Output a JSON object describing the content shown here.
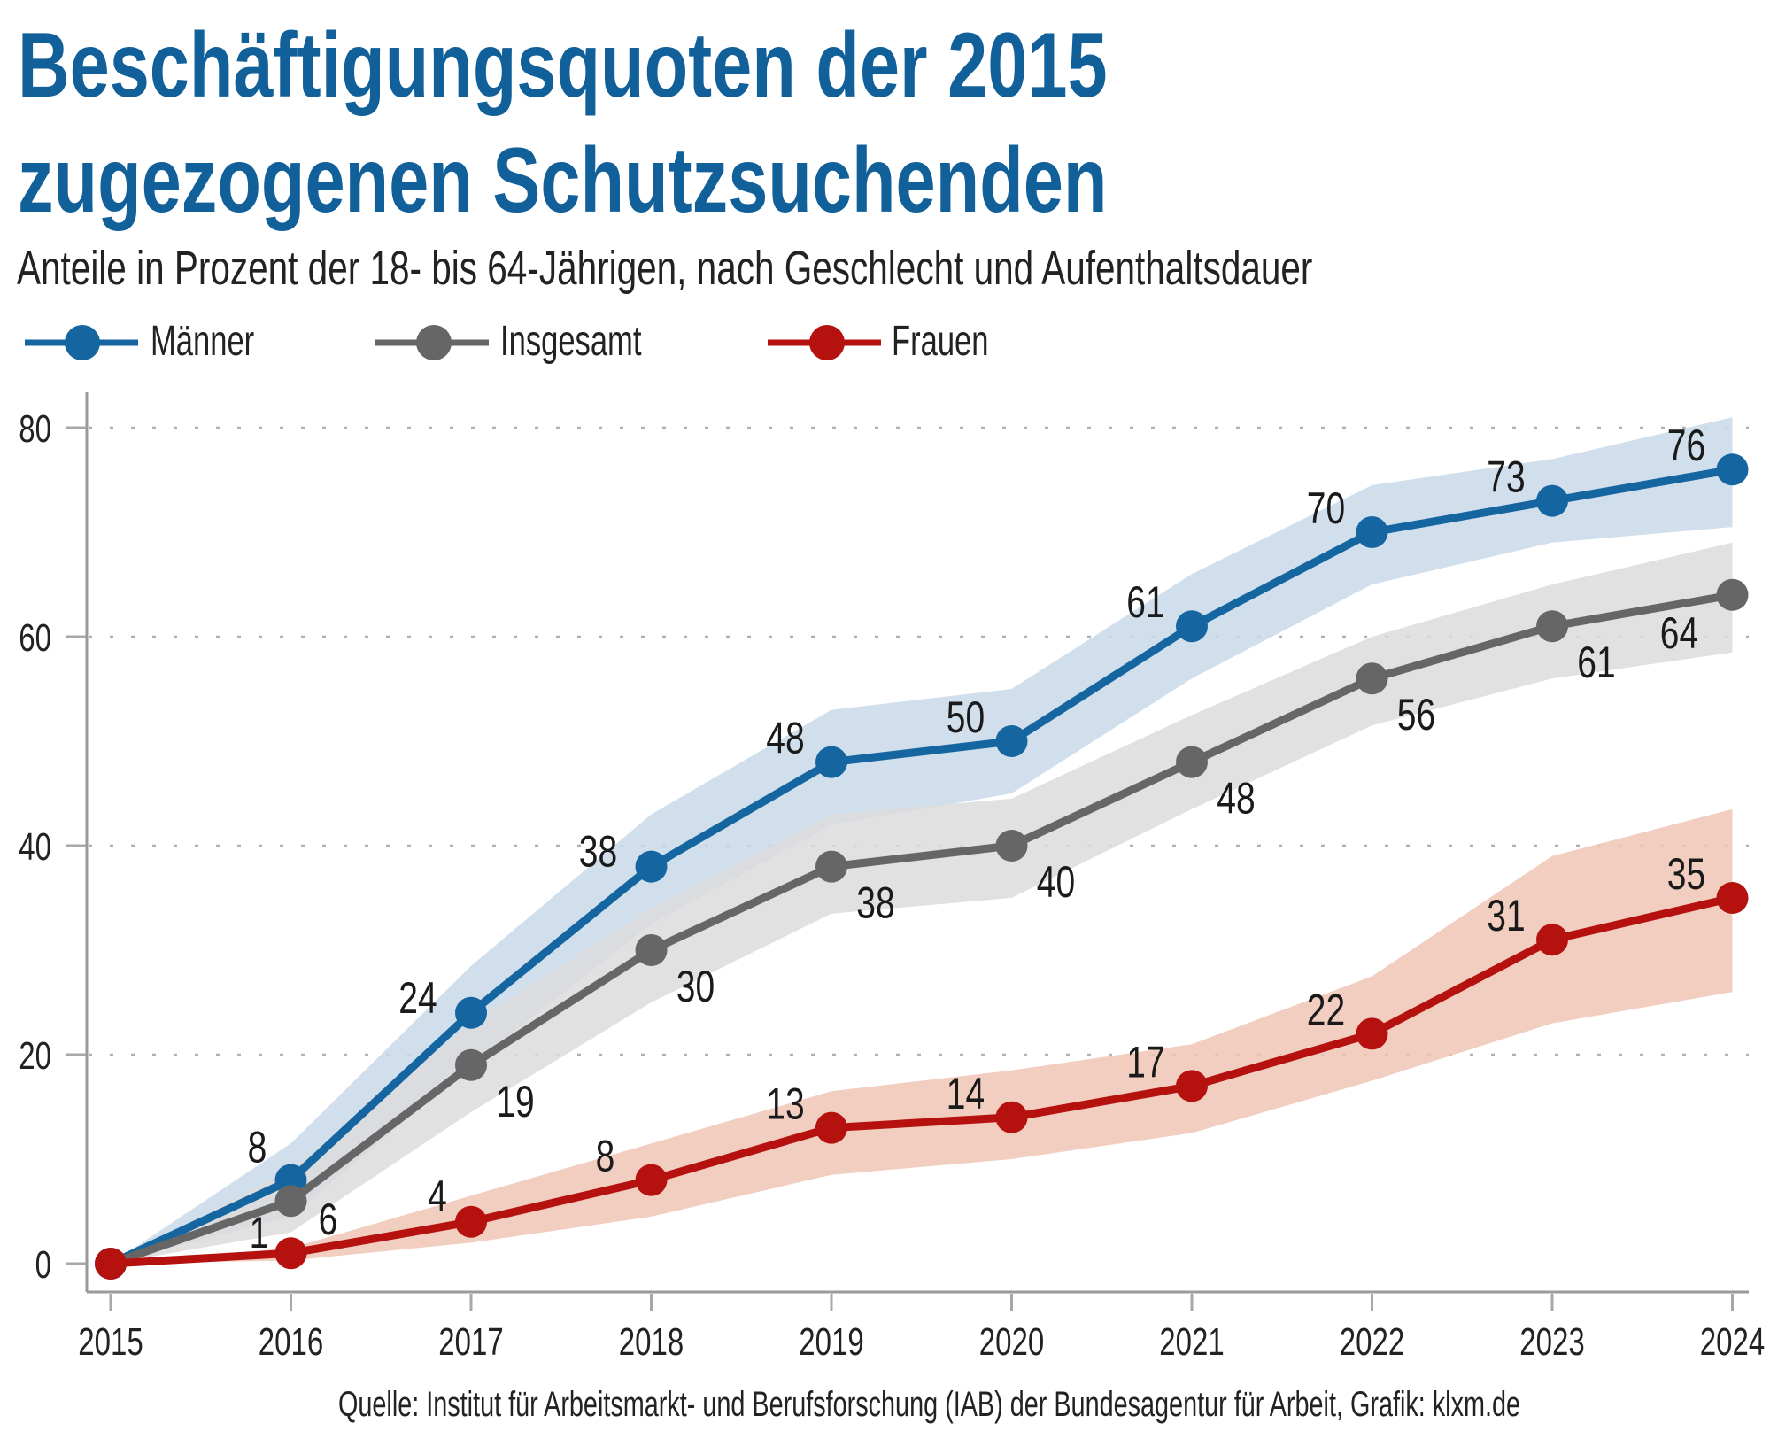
{
  "title_line1": "Beschäftigungsquoten der 2015",
  "title_line2": "zugezogenen Schutzsuchenden",
  "subtitle": "Anteile in Prozent der 18- bis 64-Jährigen, nach Geschlecht und Aufenthaltsdauer",
  "legend": [
    {
      "label": "Männer",
      "color": "#1465a0"
    },
    {
      "label": "Insgesamt",
      "color": "#666666"
    },
    {
      "label": "Frauen",
      "color": "#b5120f"
    }
  ],
  "source": "Quelle: Institut für Arbeitsmarkt- und Berufsforschung (IAB) der Bundesagentur für Arbeit, Grafik: klxm.de",
  "chart_data": {
    "type": "line",
    "title": "Beschäftigungsquoten der 2015 zugezogenen Schutzsuchenden",
    "subtitle": "Anteile in Prozent der 18- bis 64-Jährigen, nach Geschlecht und Aufenthaltsdauer",
    "xlabel": "",
    "ylabel": "",
    "x": [
      "2015",
      "2016",
      "2017",
      "2018",
      "2019",
      "2020",
      "2021",
      "2022",
      "2023",
      "2024"
    ],
    "ylim": [
      0,
      80
    ],
    "yticks": [
      0,
      20,
      40,
      60,
      80
    ],
    "grid": "horizontal dotted",
    "legend_position": "top-left",
    "series": [
      {
        "name": "Männer",
        "color": "#1465a0",
        "band_color": "#c9d9ea",
        "values": [
          0,
          8,
          24,
          38,
          48,
          50,
          61,
          70,
          73,
          76
        ],
        "band_upper": [
          0,
          11.5,
          28.5,
          43,
          53,
          55,
          66,
          74.5,
          77,
          81
        ],
        "band_lower": [
          0,
          4.5,
          19,
          32.5,
          42,
          45,
          56,
          65,
          69,
          70.5
        ],
        "label_side": [
          "none",
          "above-left",
          "left",
          "left",
          "above-left",
          "above-left",
          "above-left",
          "above-left",
          "above-left",
          "above-left"
        ]
      },
      {
        "name": "Insgesamt",
        "color": "#666666",
        "band_color": "#dcdcdc",
        "values": [
          0,
          6,
          19,
          30,
          38,
          40,
          48,
          56,
          61,
          64
        ],
        "band_upper": [
          0,
          9,
          23,
          34,
          43,
          44.5,
          52.5,
          60,
          65,
          69
        ],
        "band_lower": [
          0,
          3,
          14.5,
          25,
          33.5,
          35,
          43.5,
          51.5,
          56,
          58.5
        ],
        "label_side": [
          "none",
          "below-right",
          "below-right",
          "below-right",
          "below-right",
          "below-right",
          "below-right",
          "below-right",
          "below-right",
          "below-left"
        ]
      },
      {
        "name": "Frauen",
        "color": "#b5120f",
        "band_color": "#eec5b5",
        "values": [
          0,
          1,
          4,
          8,
          13,
          14,
          17,
          22,
          31,
          35
        ],
        "band_upper": [
          0,
          1.5,
          6.5,
          11.5,
          16.5,
          18.5,
          21,
          27.5,
          39,
          43.5
        ],
        "band_lower": [
          0,
          0.3,
          2,
          4.5,
          8.5,
          10,
          12.5,
          17.5,
          23,
          26
        ],
        "label_side": [
          "none",
          "above-left",
          "above-left",
          "above-left",
          "above-left",
          "above-left",
          "above-left",
          "above-left",
          "above-left",
          "above-left"
        ]
      }
    ],
    "data_labels": {
      "Männer": [
        "",
        "8",
        "24",
        "38",
        "48",
        "50",
        "61",
        "70",
        "73",
        "76"
      ],
      "Insgesamt": [
        "",
        "6",
        "19",
        "30",
        "38",
        "40",
        "48",
        "56",
        "61",
        "64"
      ],
      "Frauen": [
        "",
        "1",
        "4",
        "8",
        "13",
        "14",
        "17",
        "22",
        "31",
        "35"
      ]
    }
  }
}
